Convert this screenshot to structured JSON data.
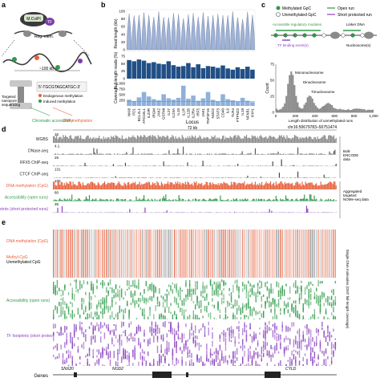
{
  "panels": {
    "a": "a",
    "b": "b",
    "c": "c",
    "d": "d",
    "e": "e"
  },
  "panel_a": {
    "enzyme": "M.CviPI",
    "tf": "TF",
    "reg_elem": "Reg. elem.",
    "scale": "~100 kb",
    "targeted": "Targeted\nnanopore\nsequencing",
    "seq_line": "5'-TGCGTAGCATGC-3'",
    "legend_endogenous": "Endogenous methylation",
    "legend_induced": "Induced methylation",
    "label_chromatin": "Chromatin accessibility",
    "label_dna_meth": "DNA methylation",
    "colors": {
      "endogenous": "#e8603c",
      "induced": "#2e9a4a",
      "tf": "#7a3fa8"
    }
  },
  "panel_b": {
    "xlabel": "Locus",
    "row_labels": [
      "Read length (kb)",
      "Full-length reads (%)",
      "Coverage"
    ],
    "read_length_ticks": [
      "100",
      "80",
      "60",
      "40",
      "20",
      "0"
    ],
    "full_length_ticks": [
      "75",
      "50",
      "25",
      "0"
    ],
    "coverage_ticks": [
      "1,000",
      "750",
      "500",
      "250"
    ],
    "loci": [
      "NKI8",
      "PD1",
      "BCL2L1",
      "ATG16L1",
      "IL23R",
      "IRGM",
      "JAK2",
      "GSTMi",
      "IL27",
      "IL23A",
      "IL10",
      "IL1R",
      "IL12B",
      "IL2RA",
      "IRF5",
      "JAK1",
      "TNFSF15",
      "NOD2",
      "STAT3",
      "CD40",
      "IL6",
      "TLR4",
      "PTPN22",
      "IL18",
      "NFKB1",
      "IFIH1"
    ],
    "full_length_pct": [
      62,
      58,
      64,
      60,
      52,
      55,
      50,
      48,
      58,
      45,
      40,
      42,
      52,
      38,
      48,
      35,
      42,
      40,
      36,
      44,
      34,
      30,
      38,
      32,
      40,
      30
    ],
    "coverage": [
      280,
      220,
      380,
      620,
      420,
      300,
      250,
      520,
      340,
      280,
      360,
      900,
      320,
      460,
      230,
      340,
      620,
      270,
      210,
      520,
      300,
      250,
      200,
      360,
      230,
      170
    ],
    "colors": {
      "read": "#9fb2d6",
      "full": "#214f86",
      "cov": "#8fb0d9"
    }
  },
  "panel_c": {
    "legend_methylated": "Methylated GpC",
    "legend_unmethylated": "Unmethylated GpC",
    "legend_open_run": "Open run",
    "legend_short_run": "Short protected run",
    "label_modules": "Accessible regulatory modules",
    "label_linker": "Linker DNA",
    "label_tf_events": "TF binding event(s)",
    "label_nucleosomes": "Nucleosome(s)",
    "hist_ylabel": "Count",
    "hist_xlabel": "Length distribution of unmethylated runs",
    "hist_yticks": [
      "75",
      "50",
      "25",
      "0"
    ],
    "hist_xticks": [
      "0",
      "200",
      "400",
      "600",
      "800",
      "1,000"
    ],
    "ann_mono": "Mononucleosome",
    "ann_di": "Dinucleosome",
    "ann_tri": "Trinucleosome",
    "colors": {
      "green": "#2e9a4a",
      "purple": "#8a3fbf",
      "hist": "#8c8c8c"
    }
  },
  "panel_d": {
    "scale": "72 kb",
    "region": "chr16:50679783–50751474",
    "tracks": [
      {
        "label": "WGBS",
        "value": "15",
        "color": "#8a8a8a",
        "kind": "dense"
      },
      {
        "label": "DNase-seq",
        "value": "4.1",
        "color": "#555555",
        "kind": "peaks"
      },
      {
        "label": "RFX5 ChIP-seq",
        "value": "26",
        "color": "#444444",
        "kind": "sparse"
      },
      {
        "label": "CTCF ChIP-seq",
        "value": "131",
        "color": "#444444",
        "kind": "sparse"
      },
      {
        "label": "DNA methylation (CpG)",
        "value": "100",
        "color": "#e8603c",
        "kind": "dense"
      },
      {
        "label": "Accessibility (open runs)",
        "value": "80",
        "color": "#2e9a4a",
        "kind": "mid"
      },
      {
        "label": "TF footprints (short protected runs)",
        "value": "35",
        "color": "#8a3fbf",
        "kind": "sparse"
      }
    ],
    "group_bulk": "Bulk ENCODE data",
    "group_agg": "Aggregated targeted NOMe-seq data"
  },
  "panel_e": {
    "label_dna_meth": "DNA methylation (CpG)",
    "label_methyl_cpg": "Methyl-CpG",
    "label_unmethyl_cpg": "Unmethylated CpG",
    "label_access": "Accessibility (open runs)",
    "label_tf": "TF footprints (short protected runs)",
    "side_label": "Single DNA molecules (ONT full-length coverage)",
    "colors": {
      "orange": "#e8603c",
      "gray": "#8a8a8a",
      "green": "#2e9a4a",
      "purple": "#8a3fbf"
    }
  },
  "genes": {
    "label": "Genes",
    "items": [
      "SNX20",
      "NOD2",
      "CYLD"
    ]
  }
}
